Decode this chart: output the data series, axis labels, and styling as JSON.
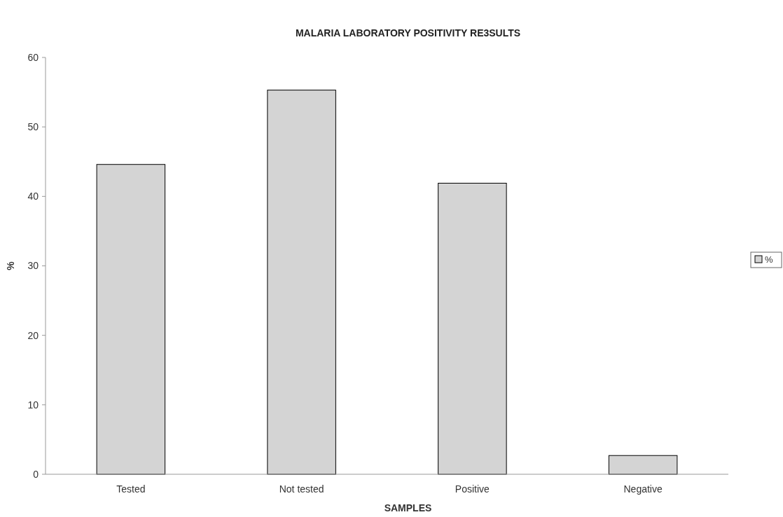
{
  "chart_data": {
    "type": "bar",
    "title": "MALARIA LABORATORY POSITIVITY RE3SULTS",
    "xlabel": "SAMPLES",
    "ylabel": "%",
    "categories": [
      "Tested",
      "Not tested",
      "Positive",
      "Negative"
    ],
    "series": [
      {
        "name": "%",
        "color": "#d4d4d4",
        "values": [
          44.6,
          55.3,
          41.9,
          2.7
        ]
      }
    ],
    "ylim": [
      0,
      60
    ],
    "yticks": [
      0,
      10,
      20,
      30,
      40,
      50,
      60
    ],
    "grid": false,
    "legend": "right"
  }
}
